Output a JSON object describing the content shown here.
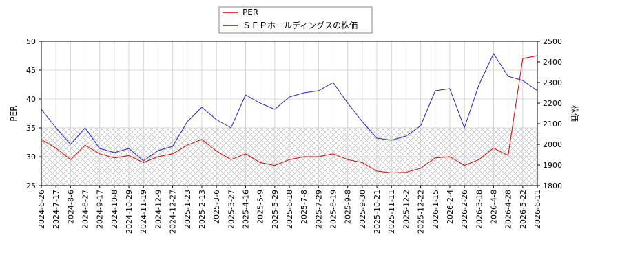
{
  "chart_data": {
    "type": "line",
    "title": "",
    "xlabel": "",
    "ylabel_left": "PER",
    "ylabel_right": "株価",
    "ylim_left": [
      25,
      50
    ],
    "ylim_right": [
      1800,
      2500
    ],
    "yticks_left": [
      "25",
      "30",
      "35",
      "40",
      "45",
      "50"
    ],
    "yticks_right": [
      "1800",
      "1900",
      "2000",
      "2100",
      "2200",
      "2300",
      "2400",
      "2500"
    ],
    "grid": true,
    "hatched_band_left_range": [
      25,
      35
    ],
    "legend": {
      "placement": "top-center",
      "entries": [
        {
          "name": "PER",
          "color": "#dd0000"
        },
        {
          "name": "ＳＦＰホールディングスの株価",
          "color": "#2222cc"
        }
      ]
    },
    "x": [
      "2024-6-26",
      "2024-7-17",
      "2024-8-6",
      "2024-8-27",
      "2024-9-17",
      "2024-10-8",
      "2024-10-29",
      "2024-11-19",
      "2024-12-9",
      "2024-12-27",
      "2025-1-23",
      "2025-2-13",
      "2025-3-6",
      "2025-3-27",
      "2025-4-16",
      "2025-5-9",
      "2025-5-29",
      "2025-6-18",
      "2025-7-8",
      "2025-7-29",
      "2025-8-19",
      "2025-9-8",
      "2025-9-30",
      "2025-10-21",
      "2025-11-11",
      "2025-12-2",
      "2025-12-22",
      "2026-1-15",
      "2026-2-4",
      "2026-2-26",
      "2026-3-18",
      "2026-4-8",
      "2026-4-28",
      "2026-5-22",
      "2026-6-11"
    ],
    "series": [
      {
        "name": "PER",
        "color": "#dd0000",
        "axis": "left",
        "values": [
          33.0,
          31.5,
          29.5,
          32.0,
          30.5,
          29.8,
          30.2,
          29.0,
          30.0,
          30.5,
          32.0,
          33.0,
          31.0,
          29.5,
          30.5,
          29.0,
          28.5,
          29.5,
          30.0,
          30.0,
          30.5,
          29.5,
          29.0,
          27.5,
          27.2,
          27.3,
          28.0,
          29.8,
          30.0,
          28.5,
          29.5,
          31.5,
          30.2,
          47.0,
          47.5
        ]
      },
      {
        "name": "ＳＦＰホールディングスの株価",
        "color": "#2222cc",
        "axis": "right",
        "values": [
          2170,
          2080,
          2000,
          2080,
          1980,
          1960,
          1980,
          1920,
          1970,
          1990,
          2110,
          2180,
          2120,
          2080,
          2240,
          2200,
          2170,
          2230,
          2250,
          2260,
          2300,
          2200,
          2110,
          2030,
          2020,
          2040,
          2090,
          2260,
          2270,
          2080,
          2290,
          2440,
          2330,
          2310,
          2260
        ]
      }
    ]
  }
}
